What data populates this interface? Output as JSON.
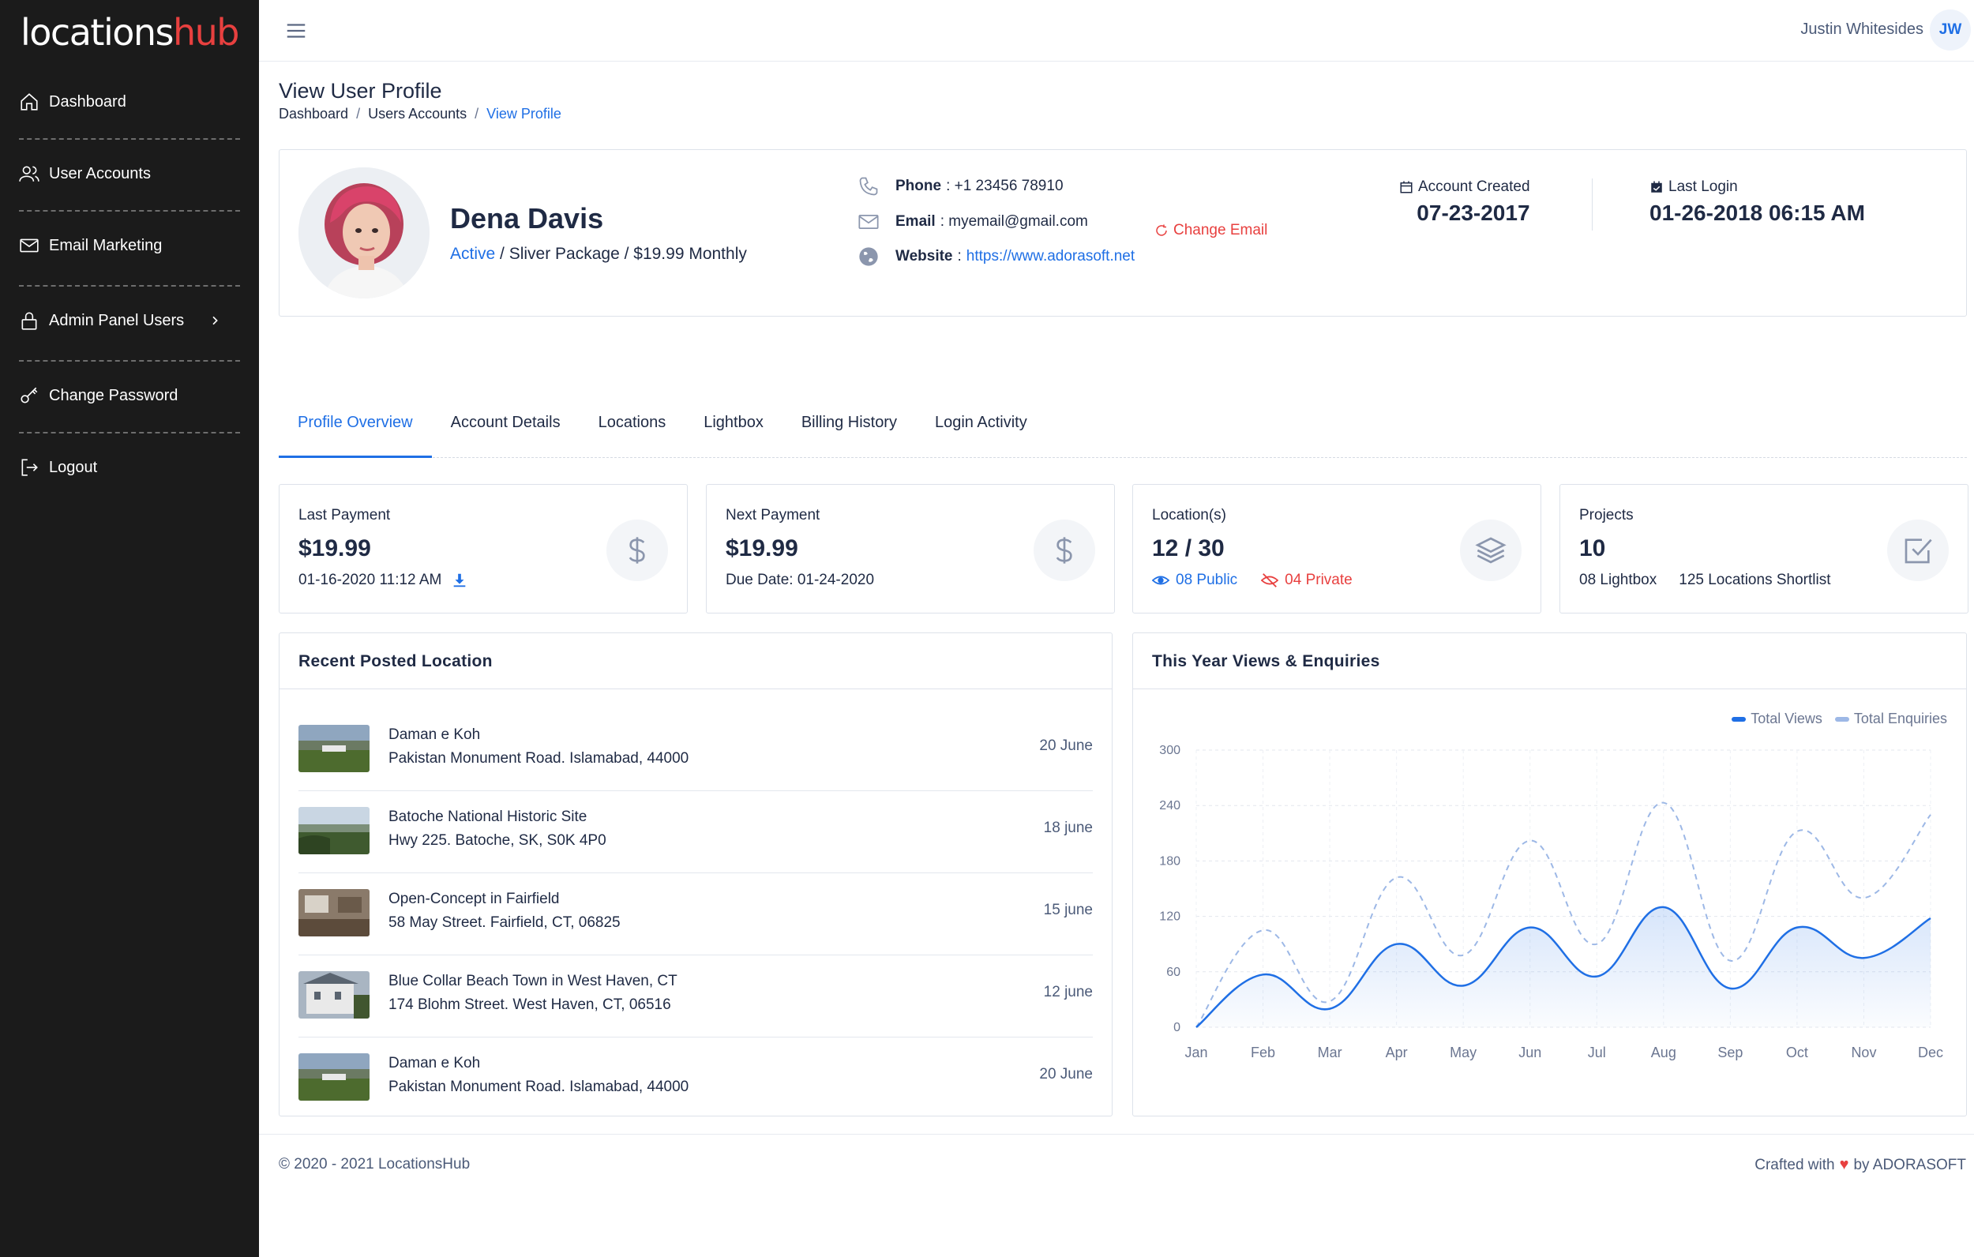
{
  "app": {
    "logo_main": "locations",
    "logo_accent": "hub",
    "brand_color": "#e8403f",
    "accent_color": "#1f6fe5"
  },
  "sidebar": {
    "items": [
      {
        "label": "Dashboard",
        "icon": "home-icon"
      },
      {
        "label": "User Accounts",
        "icon": "users-icon"
      },
      {
        "label": "Email Marketing",
        "icon": "mail-icon"
      },
      {
        "label": "Admin Panel Users",
        "icon": "lock-icon"
      },
      {
        "label": "Change Password",
        "icon": "key-icon"
      },
      {
        "label": "Logout",
        "icon": "logout-icon"
      }
    ]
  },
  "topbar": {
    "user_name": "Justin Whitesides",
    "user_initials": "JW"
  },
  "header": {
    "title": "View User Profile",
    "breadcrumb": [
      "Dashboard",
      "Users Accounts",
      "View Profile"
    ]
  },
  "profile": {
    "name": "Dena Davis",
    "status": "Active",
    "package_info": " / Sliver Package / $19.99 Monthly",
    "phone_label": "Phone",
    "phone": ": +1 23456 78910",
    "email_label": "Email",
    "email": ": myemail@gmail.com",
    "change_email": "Change Email",
    "website_label": "Website",
    "website_sep": ":",
    "website": "https://www.adorasoft.net",
    "account_created_label": "Account Created",
    "account_created": "07-23-2017",
    "last_login_label": "Last Login",
    "last_login": "01-26-2018 06:15 AM"
  },
  "tabs": [
    "Profile Overview",
    "Account Details",
    "Locations",
    "Lightbox",
    "Billing History",
    "Login Activity"
  ],
  "stats": {
    "last_payment": {
      "label": "Last Payment",
      "value": "$19.99",
      "sub": "01-16-2020 11:12 AM"
    },
    "next_payment": {
      "label": "Next Payment",
      "value": "$19.99",
      "sub": "Due Date: 01-24-2020"
    },
    "locations": {
      "label": "Location(s)",
      "value": "12 / 30",
      "public": "08 Public",
      "private": "04 Private"
    },
    "projects": {
      "label": "Projects",
      "value": "10",
      "lightbox": "08 Lightbox",
      "shortlist": "125 Locations Shortlist"
    }
  },
  "recent": {
    "title": "Recent Posted Location",
    "items": [
      {
        "title": "Daman e Koh",
        "address": "Pakistan Monument Road. Islamabad, 44000",
        "date": "20 June"
      },
      {
        "title": "Batoche National Historic Site",
        "address": "Hwy 225. Batoche, SK, S0K 4P0",
        "date": "18 june"
      },
      {
        "title": "Open-Concept in Fairfield",
        "address": "58 May Street. Fairfield, CT, 06825",
        "date": "15 june"
      },
      {
        "title": "Blue Collar Beach Town in West Haven, CT",
        "address": "174 Blohm Street. West Haven, CT, 06516",
        "date": "12 june"
      },
      {
        "title": "Daman e Koh",
        "address": "Pakistan Monument Road. Islamabad, 44000",
        "date": "20 June"
      }
    ]
  },
  "chart_panel": {
    "title": "This Year Views & Enquiries"
  },
  "chart_data": {
    "type": "line",
    "title": "",
    "categories": [
      "Jan",
      "Feb",
      "Mar",
      "Apr",
      "May",
      "Jun",
      "Jul",
      "Aug",
      "Sep",
      "Oct",
      "Nov",
      "Dec"
    ],
    "series": [
      {
        "name": "Total Views",
        "color": "#1f6fe5",
        "style": "solid",
        "area": true,
        "values": [
          0,
          57,
          20,
          90,
          45,
          108,
          55,
          130,
          42,
          108,
          75,
          118
        ]
      },
      {
        "name": "Total Enquiries",
        "color": "#9db8e6",
        "style": "dashed",
        "area": false,
        "values": [
          0,
          105,
          28,
          162,
          78,
          202,
          90,
          243,
          72,
          212,
          140,
          230
        ]
      }
    ],
    "yticks": [
      0,
      60,
      120,
      180,
      240,
      300
    ],
    "ylim": [
      0,
      300
    ],
    "grid": true,
    "legend": "top-right"
  },
  "footer": {
    "copyright": "© 2020 - 2021 LocationsHub",
    "crafted_prefix": "Crafted with",
    "crafted_suffix": "by ADORASOFT"
  }
}
